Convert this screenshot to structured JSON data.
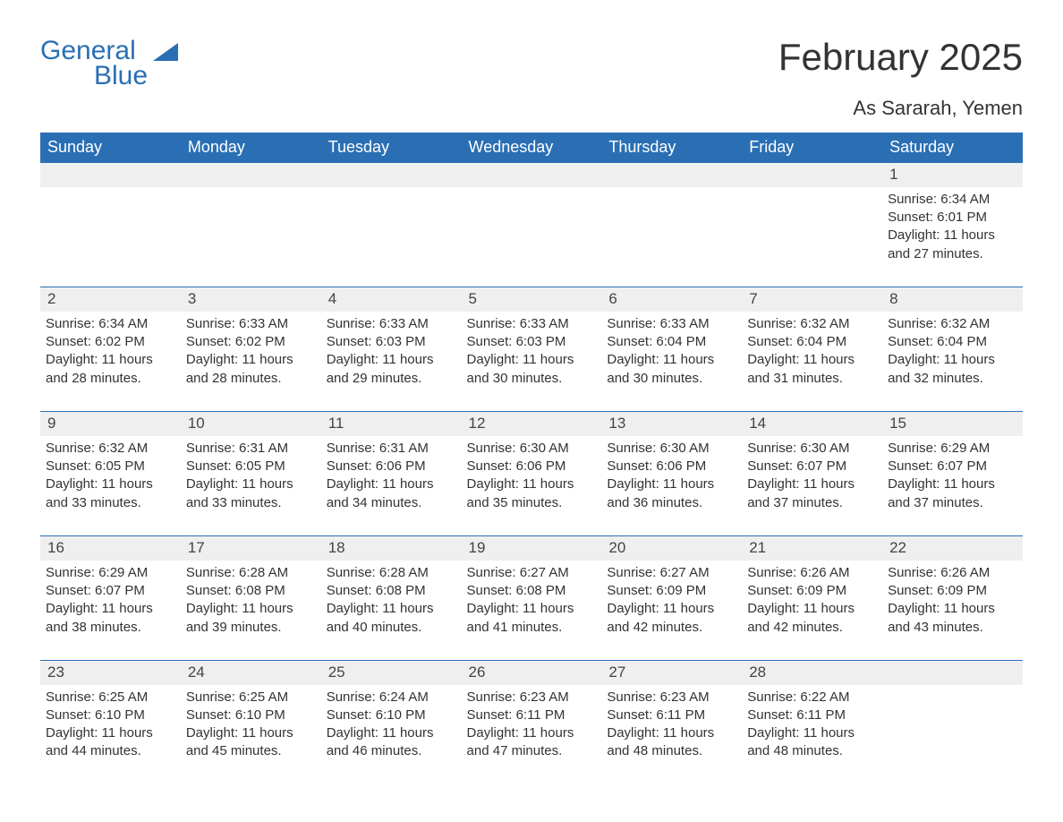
{
  "brand": {
    "part1": "General",
    "part2": "Blue"
  },
  "title": "February 2025",
  "location": "As Sararah, Yemen",
  "colors": {
    "brand_blue": "#2a6fb4",
    "header_text": "#ffffff",
    "row_bg": "#efefef",
    "body_text": "#333333",
    "page_bg": "#ffffff"
  },
  "typography": {
    "title_fontsize": 42,
    "subtitle_fontsize": 22,
    "header_fontsize": 18,
    "daynum_fontsize": 17,
    "detail_fontsize": 15
  },
  "weekdays": [
    "Sunday",
    "Monday",
    "Tuesday",
    "Wednesday",
    "Thursday",
    "Friday",
    "Saturday"
  ],
  "weeks": [
    {
      "days": [
        {
          "num": "",
          "sunrise": "",
          "sunset": "",
          "daylight": ""
        },
        {
          "num": "",
          "sunrise": "",
          "sunset": "",
          "daylight": ""
        },
        {
          "num": "",
          "sunrise": "",
          "sunset": "",
          "daylight": ""
        },
        {
          "num": "",
          "sunrise": "",
          "sunset": "",
          "daylight": ""
        },
        {
          "num": "",
          "sunrise": "",
          "sunset": "",
          "daylight": ""
        },
        {
          "num": "",
          "sunrise": "",
          "sunset": "",
          "daylight": ""
        },
        {
          "num": "1",
          "sunrise": "Sunrise: 6:34 AM",
          "sunset": "Sunset: 6:01 PM",
          "daylight": "Daylight: 11 hours and 27 minutes."
        }
      ]
    },
    {
      "days": [
        {
          "num": "2",
          "sunrise": "Sunrise: 6:34 AM",
          "sunset": "Sunset: 6:02 PM",
          "daylight": "Daylight: 11 hours and 28 minutes."
        },
        {
          "num": "3",
          "sunrise": "Sunrise: 6:33 AM",
          "sunset": "Sunset: 6:02 PM",
          "daylight": "Daylight: 11 hours and 28 minutes."
        },
        {
          "num": "4",
          "sunrise": "Sunrise: 6:33 AM",
          "sunset": "Sunset: 6:03 PM",
          "daylight": "Daylight: 11 hours and 29 minutes."
        },
        {
          "num": "5",
          "sunrise": "Sunrise: 6:33 AM",
          "sunset": "Sunset: 6:03 PM",
          "daylight": "Daylight: 11 hours and 30 minutes."
        },
        {
          "num": "6",
          "sunrise": "Sunrise: 6:33 AM",
          "sunset": "Sunset: 6:04 PM",
          "daylight": "Daylight: 11 hours and 30 minutes."
        },
        {
          "num": "7",
          "sunrise": "Sunrise: 6:32 AM",
          "sunset": "Sunset: 6:04 PM",
          "daylight": "Daylight: 11 hours and 31 minutes."
        },
        {
          "num": "8",
          "sunrise": "Sunrise: 6:32 AM",
          "sunset": "Sunset: 6:04 PM",
          "daylight": "Daylight: 11 hours and 32 minutes."
        }
      ]
    },
    {
      "days": [
        {
          "num": "9",
          "sunrise": "Sunrise: 6:32 AM",
          "sunset": "Sunset: 6:05 PM",
          "daylight": "Daylight: 11 hours and 33 minutes."
        },
        {
          "num": "10",
          "sunrise": "Sunrise: 6:31 AM",
          "sunset": "Sunset: 6:05 PM",
          "daylight": "Daylight: 11 hours and 33 minutes."
        },
        {
          "num": "11",
          "sunrise": "Sunrise: 6:31 AM",
          "sunset": "Sunset: 6:06 PM",
          "daylight": "Daylight: 11 hours and 34 minutes."
        },
        {
          "num": "12",
          "sunrise": "Sunrise: 6:30 AM",
          "sunset": "Sunset: 6:06 PM",
          "daylight": "Daylight: 11 hours and 35 minutes."
        },
        {
          "num": "13",
          "sunrise": "Sunrise: 6:30 AM",
          "sunset": "Sunset: 6:06 PM",
          "daylight": "Daylight: 11 hours and 36 minutes."
        },
        {
          "num": "14",
          "sunrise": "Sunrise: 6:30 AM",
          "sunset": "Sunset: 6:07 PM",
          "daylight": "Daylight: 11 hours and 37 minutes."
        },
        {
          "num": "15",
          "sunrise": "Sunrise: 6:29 AM",
          "sunset": "Sunset: 6:07 PM",
          "daylight": "Daylight: 11 hours and 37 minutes."
        }
      ]
    },
    {
      "days": [
        {
          "num": "16",
          "sunrise": "Sunrise: 6:29 AM",
          "sunset": "Sunset: 6:07 PM",
          "daylight": "Daylight: 11 hours and 38 minutes."
        },
        {
          "num": "17",
          "sunrise": "Sunrise: 6:28 AM",
          "sunset": "Sunset: 6:08 PM",
          "daylight": "Daylight: 11 hours and 39 minutes."
        },
        {
          "num": "18",
          "sunrise": "Sunrise: 6:28 AM",
          "sunset": "Sunset: 6:08 PM",
          "daylight": "Daylight: 11 hours and 40 minutes."
        },
        {
          "num": "19",
          "sunrise": "Sunrise: 6:27 AM",
          "sunset": "Sunset: 6:08 PM",
          "daylight": "Daylight: 11 hours and 41 minutes."
        },
        {
          "num": "20",
          "sunrise": "Sunrise: 6:27 AM",
          "sunset": "Sunset: 6:09 PM",
          "daylight": "Daylight: 11 hours and 42 minutes."
        },
        {
          "num": "21",
          "sunrise": "Sunrise: 6:26 AM",
          "sunset": "Sunset: 6:09 PM",
          "daylight": "Daylight: 11 hours and 42 minutes."
        },
        {
          "num": "22",
          "sunrise": "Sunrise: 6:26 AM",
          "sunset": "Sunset: 6:09 PM",
          "daylight": "Daylight: 11 hours and 43 minutes."
        }
      ]
    },
    {
      "days": [
        {
          "num": "23",
          "sunrise": "Sunrise: 6:25 AM",
          "sunset": "Sunset: 6:10 PM",
          "daylight": "Daylight: 11 hours and 44 minutes."
        },
        {
          "num": "24",
          "sunrise": "Sunrise: 6:25 AM",
          "sunset": "Sunset: 6:10 PM",
          "daylight": "Daylight: 11 hours and 45 minutes."
        },
        {
          "num": "25",
          "sunrise": "Sunrise: 6:24 AM",
          "sunset": "Sunset: 6:10 PM",
          "daylight": "Daylight: 11 hours and 46 minutes."
        },
        {
          "num": "26",
          "sunrise": "Sunrise: 6:23 AM",
          "sunset": "Sunset: 6:11 PM",
          "daylight": "Daylight: 11 hours and 47 minutes."
        },
        {
          "num": "27",
          "sunrise": "Sunrise: 6:23 AM",
          "sunset": "Sunset: 6:11 PM",
          "daylight": "Daylight: 11 hours and 48 minutes."
        },
        {
          "num": "28",
          "sunrise": "Sunrise: 6:22 AM",
          "sunset": "Sunset: 6:11 PM",
          "daylight": "Daylight: 11 hours and 48 minutes."
        },
        {
          "num": "",
          "sunrise": "",
          "sunset": "",
          "daylight": ""
        }
      ]
    }
  ]
}
